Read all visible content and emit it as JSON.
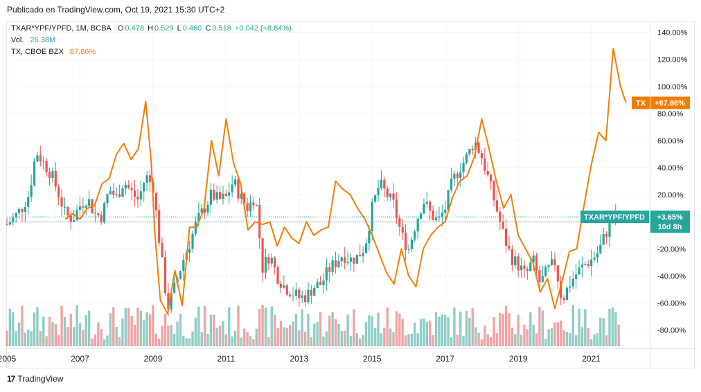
{
  "header": {
    "published": "Publicado en TradingView.com, Oct 19, 2021 15:30 UTC+2"
  },
  "legend": {
    "symbol": "TXAR*YPF/YPFD, 1M, BCBA",
    "o_label": "O",
    "o": "0.478",
    "h_label": "H",
    "h": "0.529",
    "l_label": "L",
    "l": "0.460",
    "c_label": "C",
    "c": "0.518",
    "change": "+0.042 (+8.84%)",
    "vol_label": "Vol.",
    "vol": "26.38M",
    "compare_label": "TX, CBOE BZX",
    "compare_value": "87.86%"
  },
  "badges": {
    "tx_name": "TX",
    "tx_value": "+87.86%",
    "main_name": "TXAR*YPF/YPFD",
    "main_value": "+3.65%",
    "countdown": "10d 8h"
  },
  "footer": {
    "brand": "TradingView",
    "logo_mark": "17"
  },
  "colors": {
    "up": "#26a69a",
    "down": "#ef5350",
    "vol_up": "#8fcdc6",
    "vol_down": "#f2a3a3",
    "compare": "#f57c00",
    "grid": "#f0f3fa"
  },
  "chart_data": {
    "type": "candlestick",
    "y_axis": {
      "unit": "%",
      "ticks": [
        140,
        120,
        100,
        80,
        60,
        40,
        20,
        -20,
        -40,
        -60,
        -80
      ],
      "tick_labels": [
        "140.00%",
        "120.00%",
        "100.00%",
        "80.00%",
        "60.00%",
        "40.00%",
        "20.00%",
        "-20.00%",
        "-40.00%",
        "-60.00%",
        "-80.00%"
      ],
      "range": [
        -92,
        148
      ]
    },
    "x_axis": {
      "range": [
        2005.0,
        2022.6
      ],
      "ticks": [
        2005,
        2007,
        2009,
        2011,
        2013,
        2015,
        2017,
        2019,
        2021
      ],
      "tick_labels": [
        "2005",
        "2007",
        "2009",
        "2011",
        "2013",
        "2015",
        "2017",
        "2019",
        "2021"
      ]
    },
    "main_series": {
      "name": "TXAR*YPF/YPFD",
      "last_value": 3.65,
      "path": [
        [
          2005.0,
          -2
        ],
        [
          2005.2,
          3
        ],
        [
          2005.4,
          10
        ],
        [
          2005.6,
          20
        ],
        [
          2005.8,
          52
        ],
        [
          2006.0,
          44
        ],
        [
          2006.2,
          36
        ],
        [
          2006.4,
          22
        ],
        [
          2006.6,
          5
        ],
        [
          2006.8,
          2
        ],
        [
          2007.0,
          12
        ],
        [
          2007.2,
          18
        ],
        [
          2007.4,
          6
        ],
        [
          2007.6,
          4
        ],
        [
          2007.8,
          24
        ],
        [
          2008.0,
          18
        ],
        [
          2008.2,
          30
        ],
        [
          2008.4,
          22
        ],
        [
          2008.6,
          16
        ],
        [
          2008.8,
          34
        ],
        [
          2009.0,
          26
        ],
        [
          2009.2,
          -20
        ],
        [
          2009.4,
          -64
        ],
        [
          2009.6,
          -48
        ],
        [
          2009.8,
          -30
        ],
        [
          2010.0,
          -16
        ],
        [
          2010.2,
          0
        ],
        [
          2010.4,
          10
        ],
        [
          2010.6,
          20
        ],
        [
          2010.8,
          16
        ],
        [
          2011.0,
          18
        ],
        [
          2011.2,
          30
        ],
        [
          2011.4,
          18
        ],
        [
          2011.6,
          10
        ],
        [
          2011.8,
          20
        ],
        [
          2012.0,
          -34
        ],
        [
          2012.2,
          -24
        ],
        [
          2012.4,
          -40
        ],
        [
          2012.6,
          -48
        ],
        [
          2012.8,
          -52
        ],
        [
          2013.0,
          -56
        ],
        [
          2013.2,
          -55
        ],
        [
          2013.4,
          -48
        ],
        [
          2013.6,
          -46
        ],
        [
          2013.8,
          -36
        ],
        [
          2014.0,
          -30
        ],
        [
          2014.2,
          -24
        ],
        [
          2014.4,
          -28
        ],
        [
          2014.6,
          -26
        ],
        [
          2014.8,
          -18
        ],
        [
          2015.0,
          10
        ],
        [
          2015.2,
          28
        ],
        [
          2015.4,
          20
        ],
        [
          2015.6,
          12
        ],
        [
          2015.8,
          -10
        ],
        [
          2016.0,
          -20
        ],
        [
          2016.2,
          0
        ],
        [
          2016.4,
          16
        ],
        [
          2016.6,
          6
        ],
        [
          2016.8,
          0
        ],
        [
          2017.0,
          10
        ],
        [
          2017.2,
          30
        ],
        [
          2017.4,
          40
        ],
        [
          2017.6,
          48
        ],
        [
          2017.8,
          60
        ],
        [
          2018.0,
          48
        ],
        [
          2018.2,
          30
        ],
        [
          2018.4,
          10
        ],
        [
          2018.6,
          -10
        ],
        [
          2018.8,
          -26
        ],
        [
          2019.0,
          -32
        ],
        [
          2019.2,
          -40
        ],
        [
          2019.4,
          -28
        ],
        [
          2019.6,
          -46
        ],
        [
          2019.8,
          -36
        ],
        [
          2020.0,
          -30
        ],
        [
          2020.2,
          -58
        ],
        [
          2020.4,
          -46
        ],
        [
          2020.6,
          -38
        ],
        [
          2020.8,
          -32
        ],
        [
          2021.0,
          -28
        ],
        [
          2021.2,
          -22
        ],
        [
          2021.4,
          -8
        ],
        [
          2021.6,
          2
        ],
        [
          2021.8,
          3.65
        ]
      ]
    },
    "compare_series": {
      "name": "TX",
      "last_value": 87.86,
      "points": [
        [
          2006.6,
          2
        ],
        [
          2006.8,
          6
        ],
        [
          2007.0,
          2
        ],
        [
          2007.2,
          10
        ],
        [
          2007.4,
          12
        ],
        [
          2007.6,
          28
        ],
        [
          2007.8,
          32
        ],
        [
          2008.0,
          50
        ],
        [
          2008.2,
          58
        ],
        [
          2008.4,
          46
        ],
        [
          2008.6,
          54
        ],
        [
          2008.8,
          89
        ],
        [
          2008.95,
          44
        ],
        [
          2009.05,
          -8
        ],
        [
          2009.2,
          -58
        ],
        [
          2009.4,
          -68
        ],
        [
          2009.6,
          -36
        ],
        [
          2009.8,
          -62
        ],
        [
          2010.0,
          -4
        ],
        [
          2010.2,
          -4
        ],
        [
          2010.4,
          10
        ],
        [
          2010.6,
          60
        ],
        [
          2010.8,
          34
        ],
        [
          2011.0,
          76
        ],
        [
          2011.2,
          44
        ],
        [
          2011.4,
          28
        ],
        [
          2011.6,
          -6
        ],
        [
          2011.8,
          0
        ],
        [
          2012.0,
          -2
        ],
        [
          2012.2,
          0
        ],
        [
          2012.4,
          -18
        ],
        [
          2012.6,
          -4
        ],
        [
          2012.8,
          -12
        ],
        [
          2013.0,
          -16
        ],
        [
          2013.2,
          0
        ],
        [
          2013.4,
          -10
        ],
        [
          2013.6,
          -6
        ],
        [
          2013.8,
          -4
        ],
        [
          2014.0,
          30
        ],
        [
          2014.2,
          24
        ],
        [
          2014.4,
          20
        ],
        [
          2014.6,
          10
        ],
        [
          2014.8,
          2
        ],
        [
          2015.0,
          -10
        ],
        [
          2015.2,
          -24
        ],
        [
          2015.4,
          -38
        ],
        [
          2015.6,
          -46
        ],
        [
          2015.8,
          -20
        ],
        [
          2016.0,
          -40
        ],
        [
          2016.2,
          -48
        ],
        [
          2016.4,
          -20
        ],
        [
          2016.6,
          -10
        ],
        [
          2016.8,
          -4
        ],
        [
          2017.0,
          0
        ],
        [
          2017.2,
          18
        ],
        [
          2017.4,
          30
        ],
        [
          2017.6,
          34
        ],
        [
          2017.8,
          48
        ],
        [
          2018.0,
          76
        ],
        [
          2018.2,
          54
        ],
        [
          2018.4,
          30
        ],
        [
          2018.6,
          10
        ],
        [
          2018.8,
          20
        ],
        [
          2019.0,
          -10
        ],
        [
          2019.2,
          -20
        ],
        [
          2019.4,
          -30
        ],
        [
          2019.6,
          -52
        ],
        [
          2019.8,
          -42
        ],
        [
          2020.0,
          -64
        ],
        [
          2020.2,
          -44
        ],
        [
          2020.4,
          -22
        ],
        [
          2020.6,
          -20
        ],
        [
          2020.8,
          12
        ],
        [
          2021.0,
          42
        ],
        [
          2021.2,
          66
        ],
        [
          2021.4,
          60
        ],
        [
          2021.6,
          128
        ],
        [
          2021.8,
          100
        ],
        [
          2021.95,
          87.86
        ]
      ]
    },
    "volume": {
      "label": "Vol.",
      "last": "26.38M"
    }
  }
}
